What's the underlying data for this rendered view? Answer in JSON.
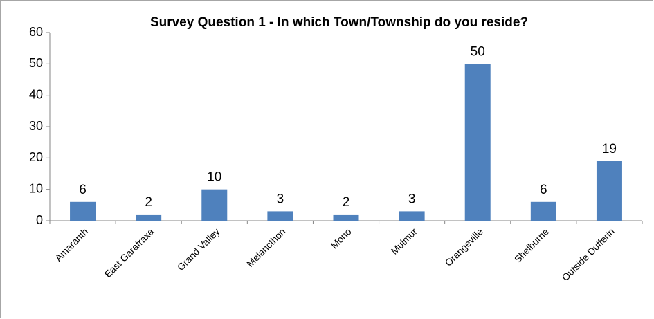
{
  "chart_data": {
    "type": "bar",
    "title": "Survey Question 1 - In which Town/Township do you reside?",
    "categories": [
      "Amaranth",
      "East Garafraxa",
      "Grand Valley",
      "Melancthon",
      "Mono",
      "Mulmur",
      "Orangeville",
      "Shelburne",
      "Outside Dufferin"
    ],
    "values": [
      6,
      2,
      10,
      3,
      2,
      3,
      50,
      6,
      19
    ],
    "color": "#4f81bd",
    "ylim": [
      0,
      60
    ],
    "yticks": [
      0,
      10,
      20,
      30,
      40,
      50,
      60
    ],
    "grid": false
  }
}
